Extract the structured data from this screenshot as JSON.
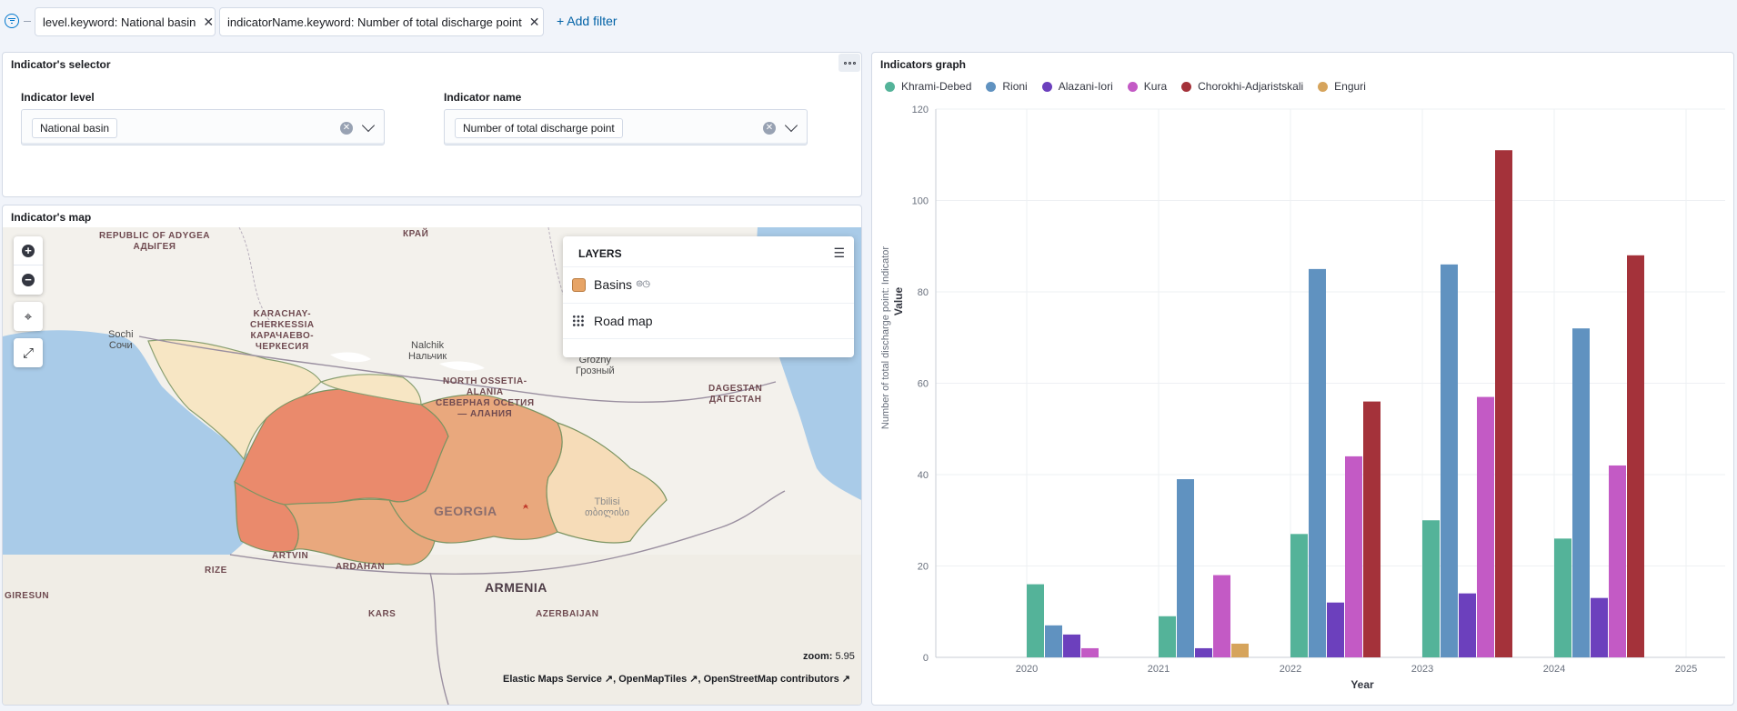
{
  "filters": [
    {
      "label": "level.keyword: National basin"
    },
    {
      "label": "indicatorName.keyword: Number of total discharge point"
    }
  ],
  "add_filter_label": "+ Add filter",
  "selector": {
    "title": "Indicator's selector",
    "level_label": "Indicator level",
    "level_value": "National basin",
    "name_label": "Indicator name",
    "name_value": "Number of total discharge point"
  },
  "map": {
    "title": "Indicator's map",
    "layers_header": "LAYERS",
    "layers": [
      {
        "label": "Basins",
        "color": "#e7a466",
        "icon": "filled-square"
      },
      {
        "label": "Road map",
        "icon": "grid-icon"
      }
    ],
    "zoom_label": "zoom:",
    "zoom_value": "5.95",
    "attribution": [
      "Elastic Maps Service",
      "OpenMapTiles",
      "OpenStreetMap contributors"
    ],
    "place_labels": {
      "adygea": [
        "REPUBLIC OF ADYGEA",
        "АДЫГЕЯ"
      ],
      "krai": "КРАЙ",
      "karachay": [
        "KARACHAY-",
        "CHERKESSIA",
        "КАРАЧАЕВО-",
        "ЧЕРКЕСИЯ"
      ],
      "sochi": [
        "Sochi",
        "Сочи"
      ],
      "nalchik": [
        "Nalchik",
        "Нальчик"
      ],
      "grozny": [
        "Grozny",
        "Грозный"
      ],
      "ossetia": [
        "NORTH OSSETIA-",
        "ALANIA",
        "СЕВЕРНАЯ ОСЕТИЯ",
        "— АЛАНИЯ"
      ],
      "dagestan": [
        "DAGESTAN",
        "ДАГЕСТАН"
      ],
      "tbilisi": [
        "Tbilisi",
        "თბილისი"
      ],
      "georgia": "GEORGIA",
      "artvin": "ARTVIN",
      "ardahan": "ARDAHAN",
      "rize": "RIZE",
      "giresun": "GIRESUN",
      "armenia": "ARMENIA",
      "kars": "KARS",
      "azerbaijan": "AZERBAIJAN"
    }
  },
  "graph": {
    "title": "Indicators graph"
  },
  "chart_data": {
    "type": "bar",
    "categories": [
      "2020",
      "2021",
      "2022",
      "2023",
      "2024"
    ],
    "x_ticks": [
      "2020",
      "2021",
      "2022",
      "2023",
      "2024",
      "2025"
    ],
    "xlabel": "Year",
    "ylabel": "Value",
    "ylabel_secondary": "Number of total discharge point: Indicator",
    "ylim": [
      0,
      120
    ],
    "y_ticks": [
      0,
      20,
      40,
      60,
      80,
      100,
      120
    ],
    "grid": true,
    "legend_position": "top-left",
    "series": [
      {
        "name": "Khrami-Debed",
        "color": "#54b399",
        "values": [
          16,
          9,
          27,
          30,
          26
        ]
      },
      {
        "name": "Rioni",
        "color": "#6092c0",
        "values": [
          7,
          39,
          85,
          86,
          72
        ]
      },
      {
        "name": "Alazani-Iori",
        "color": "#6c40bd",
        "values": [
          5,
          2,
          12,
          14,
          13
        ]
      },
      {
        "name": "Kura",
        "color": "#c35ac5",
        "values": [
          2,
          18,
          44,
          57,
          42
        ]
      },
      {
        "name": "Chorokhi-Adjaristskali",
        "color": "#a4323a",
        "values": [
          null,
          null,
          56,
          111,
          88
        ]
      },
      {
        "name": "Enguri",
        "color": "#d6a45c",
        "values": [
          null,
          3,
          null,
          null,
          null
        ]
      }
    ]
  }
}
